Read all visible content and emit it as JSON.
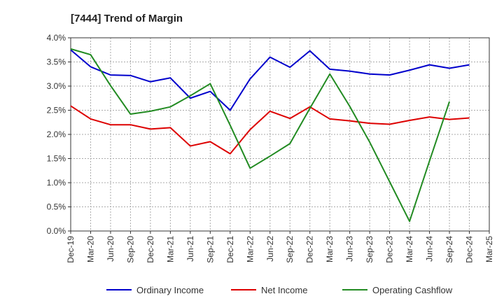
{
  "chart_data": {
    "type": "line",
    "title": "[7444]  Trend of Margin",
    "x": [
      "Dec-19",
      "Mar-20",
      "Jun-20",
      "Sep-20",
      "Dec-20",
      "Mar-21",
      "Jun-21",
      "Sep-21",
      "Dec-21",
      "Mar-22",
      "Jun-22",
      "Sep-22",
      "Dec-22",
      "Mar-23",
      "Jun-23",
      "Sep-23",
      "Dec-23",
      "Mar-24",
      "Jun-24",
      "Sep-24",
      "Dec-24",
      "Mar-25"
    ],
    "y_ticks": [
      "0.0%",
      "0.5%",
      "1.0%",
      "1.5%",
      "2.0%",
      "2.5%",
      "3.0%",
      "3.5%",
      "4.0%"
    ],
    "ylim": [
      0,
      4.0
    ],
    "grid": true,
    "legend_position": "bottom",
    "series": [
      {
        "name": "Ordinary Income",
        "color": "#0000cc",
        "values": [
          3.75,
          3.4,
          3.23,
          3.22,
          3.09,
          3.17,
          2.75,
          2.89,
          2.5,
          3.15,
          3.6,
          3.39,
          3.73,
          3.35,
          3.31,
          3.25,
          3.23,
          3.33,
          3.44,
          3.37,
          3.44,
          null
        ]
      },
      {
        "name": "Net Income",
        "color": "#dd0000",
        "values": [
          2.59,
          2.32,
          2.2,
          2.2,
          2.11,
          2.14,
          1.76,
          1.85,
          1.6,
          2.1,
          2.48,
          2.33,
          2.57,
          2.32,
          2.28,
          2.23,
          2.21,
          2.29,
          2.36,
          2.31,
          2.34,
          null
        ]
      },
      {
        "name": "Operating Cashflow",
        "color": "#228b22",
        "values": [
          3.77,
          3.65,
          3.01,
          2.42,
          2.48,
          2.57,
          2.8,
          3.05,
          2.19,
          1.3,
          1.55,
          1.81,
          2.54,
          3.25,
          2.58,
          1.84,
          1.02,
          0.2,
          1.45,
          2.68,
          null,
          null
        ]
      }
    ]
  }
}
